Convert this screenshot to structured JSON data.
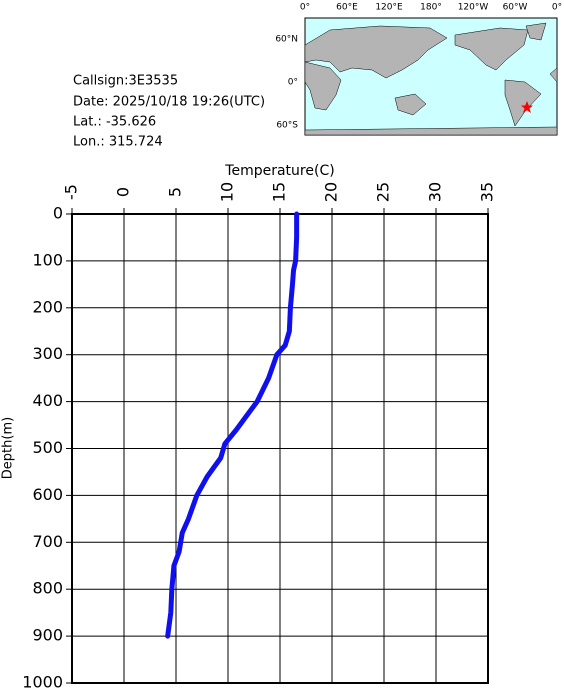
{
  "info": {
    "callsign": "Callsign:3E3535",
    "date": "Date:  2025/10/18 19:26(UTC)",
    "lat": "Lat.:  -35.626",
    "lon": "Lon.:  315.724"
  },
  "map": {
    "lon_labels": [
      "0°",
      "60°E",
      "120°E",
      "180°",
      "120°W",
      "60°W",
      "0°"
    ],
    "lat_labels": [
      "60°N",
      "0°",
      "60°S"
    ]
  },
  "chart_data": {
    "type": "profile",
    "x_label": "Temperature(C)",
    "y_label": "Depth(m)",
    "xlim": [
      -5,
      35
    ],
    "xticks": [
      -5,
      0,
      5,
      10,
      15,
      20,
      25,
      30,
      35
    ],
    "ylim": [
      0,
      1000
    ],
    "yticks": [
      0,
      100,
      200,
      300,
      400,
      500,
      600,
      700,
      800,
      900,
      1000
    ],
    "grid": true,
    "color": "#1010ee",
    "depth": [
      0,
      50,
      100,
      120,
      150,
      200,
      250,
      280,
      300,
      350,
      400,
      430,
      460,
      490,
      520,
      560,
      600,
      650,
      680,
      720,
      750,
      800,
      850,
      900
    ],
    "temperature": [
      16.6,
      16.6,
      16.5,
      16.3,
      16.2,
      16.0,
      15.9,
      15.5,
      14.7,
      13.9,
      12.8,
      11.8,
      10.8,
      9.7,
      9.3,
      8.0,
      7.0,
      6.2,
      5.6,
      5.3,
      4.8,
      4.6,
      4.5,
      4.2
    ]
  }
}
